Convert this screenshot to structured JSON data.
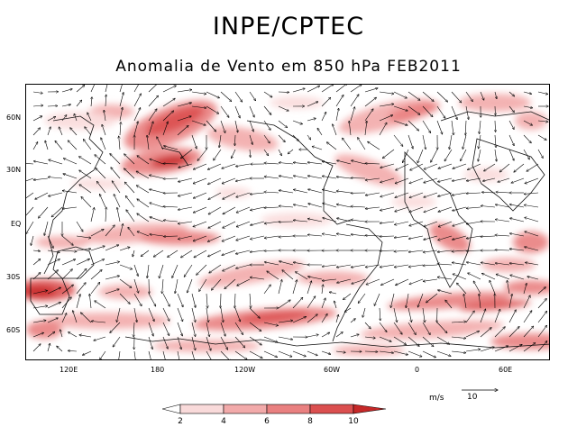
{
  "header": {
    "title": "INPE/CPTEC",
    "subtitle": "Anomalia de Vento em 850 hPa FEB2011"
  },
  "map": {
    "variable": "850 hPa wind anomaly",
    "lon_labels": [
      "120E",
      "180",
      "120W",
      "60W",
      "0",
      "60E"
    ],
    "lat_labels": [
      "60N",
      "30N",
      "EQ",
      "30S",
      "60S"
    ]
  },
  "legend": {
    "ticks": [
      "2",
      "4",
      "6",
      "8",
      "10"
    ],
    "colors": [
      "#ffffff",
      "#f9dada",
      "#f2aaaa",
      "#e98080",
      "#db4f4f",
      "#c62828"
    ]
  },
  "vector_key": {
    "unit": "m/s",
    "value": "10"
  }
}
